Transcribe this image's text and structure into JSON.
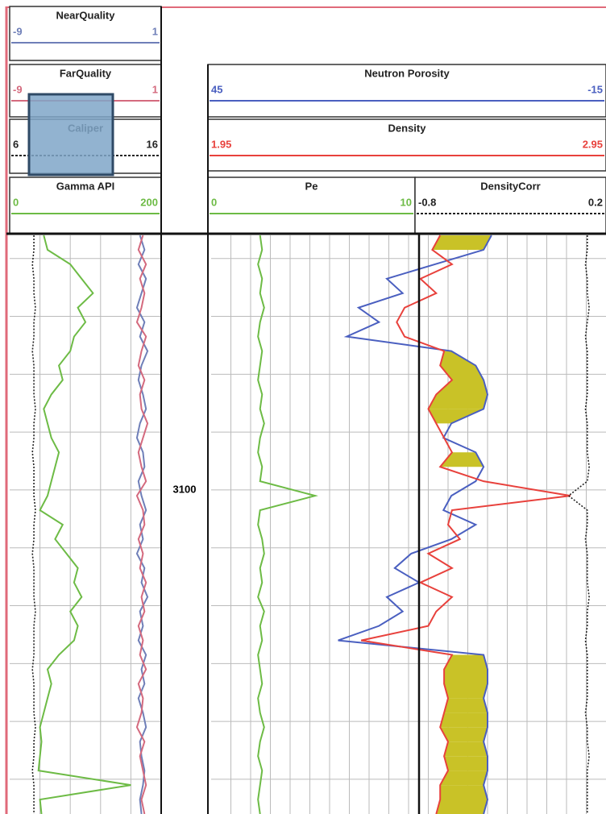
{
  "chart_data": {
    "type": "log",
    "y": [
      3056,
      3058.5,
      3061,
      3063.5,
      3066,
      3068.5,
      3071,
      3073.5,
      3076,
      3078.5,
      3081,
      3083.5,
      3086,
      3088.5,
      3091,
      3093.5,
      3096,
      3098.5,
      3101,
      3103.5,
      3106,
      3108.5,
      3111,
      3113.5,
      3116,
      3118.5,
      3121,
      3123.5,
      3126,
      3128.5,
      3131,
      3133.5,
      3136,
      3138.5,
      3141,
      3143.5,
      3146,
      3148.5,
      3151,
      3153.5,
      3156
    ],
    "ylim": [
      3056,
      3156
    ],
    "yticks": [
      3100
    ],
    "grid": true,
    "fill_color": "#c9c227",
    "series": [
      {
        "name": "NearQuality",
        "color": "#6f7fb8",
        "xlim": [
          -9,
          1
        ],
        "line": "solid",
        "values": [
          -0.4,
          -0.1,
          -0.5,
          0.0,
          -0.3,
          -0.6,
          -0.1,
          -0.4,
          0.1,
          -0.3,
          -0.5,
          -0.2,
          0.0,
          -0.4,
          -0.6,
          -0.2,
          -0.1,
          -0.5,
          -0.3,
          0.0,
          -0.4,
          -0.2,
          -0.6,
          -0.1,
          -0.3,
          0.1,
          -0.4,
          -0.2,
          -0.5,
          0.0,
          -0.3,
          -0.1,
          -0.5,
          -0.2,
          0.0,
          -0.4,
          -0.3,
          -0.1,
          -0.2,
          -0.4,
          -0.3
        ]
      },
      {
        "name": "FarQuality",
        "color": "#d46a7e",
        "xlim": [
          -9,
          1
        ],
        "line": "solid",
        "values": [
          -0.2,
          -0.5,
          0.0,
          -0.4,
          -0.1,
          -0.3,
          -0.6,
          0.0,
          -0.3,
          -0.5,
          -0.1,
          -0.4,
          -0.3,
          0.1,
          -0.2,
          -0.5,
          -0.3,
          0.0,
          -0.6,
          -0.2,
          -0.1,
          -0.5,
          -0.2,
          -0.4,
          0.0,
          -0.3,
          -0.1,
          -0.5,
          -0.2,
          -0.4,
          0.0,
          -0.5,
          -0.2,
          -0.3,
          -0.6,
          -0.1,
          -0.4,
          -0.2,
          0.0,
          -0.3,
          -0.1
        ]
      },
      {
        "name": "Caliper",
        "color": "#222222",
        "xlim": [
          6,
          16
        ],
        "line": "dotted",
        "values": [
          7.6,
          7.6,
          7.5,
          7.6,
          7.6,
          7.7,
          7.6,
          7.6,
          7.5,
          7.6,
          7.6,
          7.6,
          7.7,
          7.6,
          7.6,
          7.5,
          7.6,
          7.6,
          7.6,
          7.7,
          7.6,
          7.6,
          7.5,
          7.6,
          7.6,
          7.6,
          7.7,
          7.6,
          7.6,
          7.6,
          7.5,
          7.6,
          7.6,
          7.6,
          7.7,
          7.6,
          7.6,
          7.5,
          7.6,
          7.6,
          7.6
        ]
      },
      {
        "name": "Gamma API",
        "color": "#6dbb45",
        "xlim": [
          0,
          200
        ],
        "line": "solid",
        "values": [
          45,
          50,
          80,
          95,
          110,
          90,
          100,
          85,
          80,
          65,
          70,
          55,
          45,
          50,
          55,
          65,
          60,
          55,
          50,
          40,
          70,
          60,
          75,
          90,
          85,
          95,
          80,
          90,
          85,
          65,
          50,
          55,
          50,
          45,
          40,
          42,
          40,
          38,
          160,
          40,
          42
        ]
      },
      {
        "name": "Neutron Porosity",
        "color": "#4a5fc0",
        "xlim": [
          45,
          -15
        ],
        "line": "solid",
        "values": [
          2.4,
          3.6,
          11.0,
          18.3,
          15.9,
          22.6,
          19.5,
          24.4,
          8.5,
          4.8,
          3.6,
          3.0,
          3.6,
          8.5,
          9.7,
          4.8,
          3.6,
          4.8,
          8.5,
          9.7,
          4.8,
          8.5,
          14.6,
          17.1,
          13.4,
          18.3,
          15.9,
          19.5,
          25.7,
          3.6,
          3.0,
          3.0,
          3.6,
          3.0,
          3.0,
          3.6,
          3.0,
          3.0,
          3.6,
          3.0,
          3.6
        ]
      },
      {
        "name": "Density",
        "color": "#e8413c",
        "xlim": [
          1.95,
          2.95
        ],
        "line": "solid",
        "values": [
          2.53,
          2.51,
          2.56,
          2.48,
          2.52,
          2.44,
          2.42,
          2.44,
          2.54,
          2.53,
          2.56,
          2.52,
          2.5,
          2.52,
          2.54,
          2.56,
          2.53,
          2.64,
          2.86,
          2.56,
          2.55,
          2.58,
          2.5,
          2.56,
          2.48,
          2.56,
          2.52,
          2.5,
          2.33,
          2.56,
          2.54,
          2.54,
          2.55,
          2.54,
          2.53,
          2.55,
          2.54,
          2.55,
          2.53,
          2.53,
          2.52
        ]
      },
      {
        "name": "Pe",
        "color": "#6dbb45",
        "xlim": [
          0,
          10
        ],
        "line": "solid",
        "values": [
          2.4,
          2.5,
          2.3,
          2.5,
          2.4,
          2.6,
          2.4,
          2.3,
          2.5,
          2.4,
          2.3,
          2.5,
          2.4,
          2.6,
          2.4,
          2.3,
          2.5,
          2.4,
          5.1,
          2.4,
          2.3,
          2.5,
          2.6,
          2.4,
          2.5,
          2.3,
          2.6,
          2.4,
          2.5,
          2.3,
          2.4,
          2.5,
          2.3,
          2.4,
          2.6,
          2.4,
          2.3,
          2.5,
          2.4,
          2.3,
          2.4
        ]
      },
      {
        "name": "DensityCorr",
        "color": "#222222",
        "xlim": [
          -0.8,
          0.2
        ],
        "line": "dotted",
        "values": [
          0.1,
          0.1,
          0.09,
          0.1,
          0.1,
          0.11,
          0.1,
          0.09,
          0.1,
          0.1,
          0.1,
          0.1,
          0.09,
          0.1,
          0.1,
          0.1,
          0.11,
          0.1,
          0.0,
          0.1,
          0.1,
          0.09,
          0.1,
          0.1,
          0.1,
          0.11,
          0.1,
          0.1,
          0.09,
          0.1,
          0.1,
          0.1,
          0.1,
          0.09,
          0.1,
          0.1,
          0.11,
          0.1,
          0.1,
          0.1,
          0.1
        ]
      }
    ]
  }
}
